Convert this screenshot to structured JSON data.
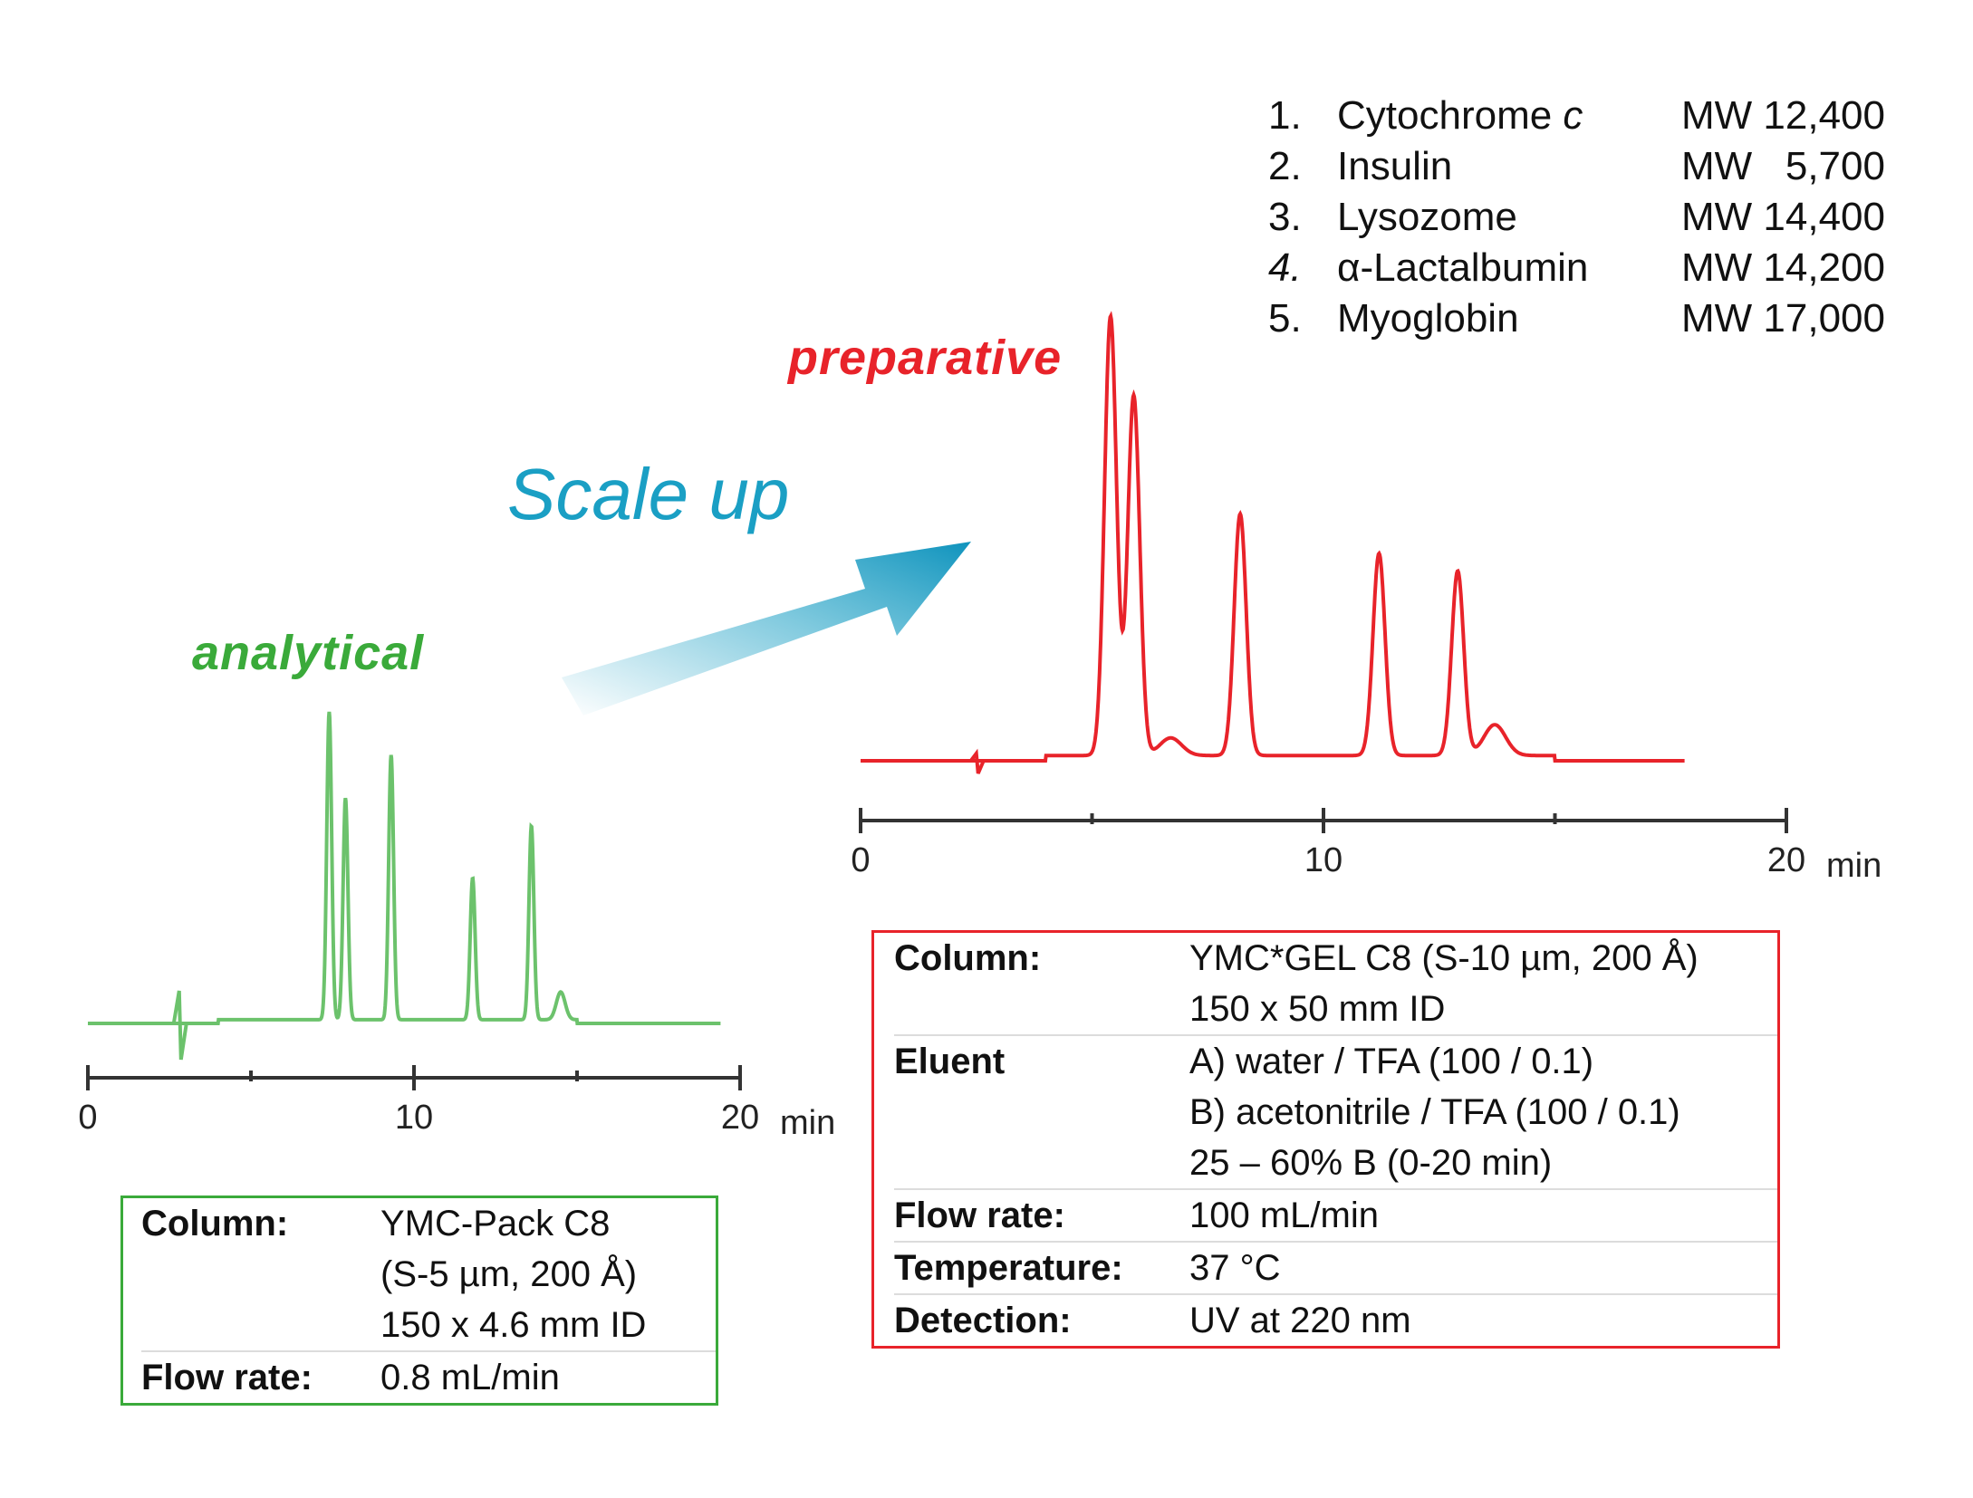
{
  "labels": {
    "analytical": "analytical",
    "preparative": "preparative",
    "scale_up": "Scale up"
  },
  "legend": [
    {
      "num": "1.",
      "name": "Cytochrome c",
      "mw": "MW 12,400"
    },
    {
      "num": "2.",
      "name": "Insulin",
      "mw": "MW   5,700"
    },
    {
      "num": "3.",
      "name": "Lysozome",
      "mw": "MW 14,400"
    },
    {
      "num": "4.",
      "name": "α-Lactalbumin",
      "mw": "MW 14,200"
    },
    {
      "num": "5.",
      "name": "Myoglobin",
      "mw": "MW 17,000"
    }
  ],
  "conditions_analytical": [
    {
      "key": "Column:",
      "values": [
        "YMC-Pack C8",
        "(S-5 µm, 200 Å)",
        "150 x 4.6 mm ID"
      ]
    },
    {
      "key": "Flow rate:",
      "values": [
        "0.8 mL/min"
      ]
    }
  ],
  "conditions_preparative": [
    {
      "key": "Column:",
      "values": [
        "YMC*GEL C8 (S-10 µm, 200 Å)",
        "150 x 50 mm ID"
      ]
    },
    {
      "key": "Eluent",
      "values": [
        "A) water / TFA (100 / 0.1)",
        "B) acetonitrile / TFA (100 / 0.1)",
        "25 – 60% B (0-20 min)"
      ]
    },
    {
      "key": "Flow rate:",
      "values": [
        "100 mL/min"
      ]
    },
    {
      "key": "Temperature:",
      "values": [
        "37 °C"
      ]
    },
    {
      "key": "Detection:",
      "values": [
        "UV at 220 nm"
      ]
    }
  ],
  "colors": {
    "analytical": "#6cc26c",
    "preparative": "#e8232a",
    "arrow": "#1a9fc4"
  },
  "chart_data": [
    {
      "type": "line",
      "id": "analytical",
      "x_unit": "min",
      "xlim": [
        0,
        20
      ],
      "x_ticks": [
        0,
        10,
        20
      ],
      "x_minor_ticks": [
        5,
        15
      ],
      "peaks": [
        {
          "t": 7.4,
          "h": 1.0
        },
        {
          "t": 7.9,
          "h": 0.72
        },
        {
          "t": 9.3,
          "h": 0.86
        },
        {
          "t": 11.8,
          "h": 0.46
        },
        {
          "t": 13.6,
          "h": 0.63
        },
        {
          "t": 14.5,
          "h": 0.09
        }
      ]
    },
    {
      "type": "line",
      "id": "preparative",
      "x_unit": "min",
      "xlim": [
        0,
        20
      ],
      "x_ticks": [
        0,
        10,
        20
      ],
      "x_minor_ticks": [
        5,
        15
      ],
      "peaks": [
        {
          "t": 5.4,
          "h": 1.0
        },
        {
          "t": 5.9,
          "h": 0.82
        },
        {
          "t": 6.7,
          "h": 0.04
        },
        {
          "t": 8.2,
          "h": 0.55
        },
        {
          "t": 11.2,
          "h": 0.46
        },
        {
          "t": 12.9,
          "h": 0.42
        },
        {
          "t": 13.7,
          "h": 0.07
        }
      ]
    }
  ]
}
